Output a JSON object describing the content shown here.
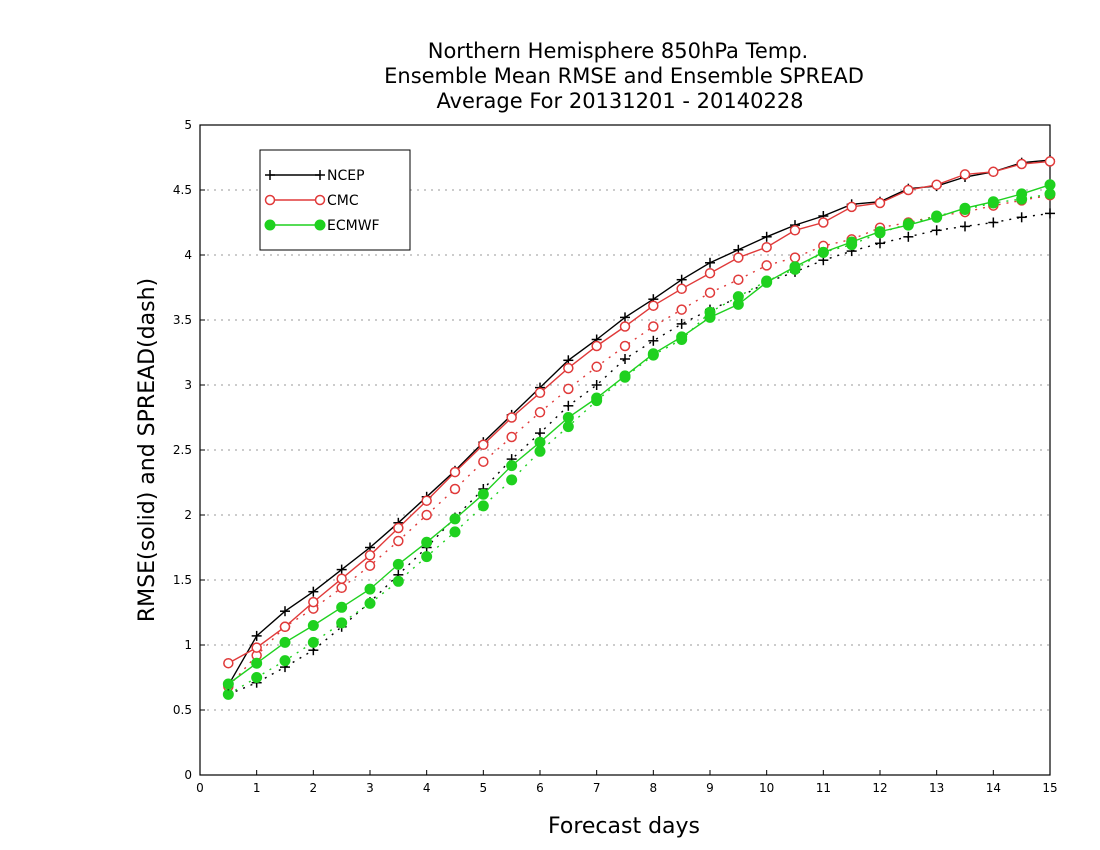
{
  "chart_data": {
    "type": "line",
    "title": [
      "Northern Hemisphere 850hPa Temp.",
      "Ensemble Mean RMSE and Ensemble SPREAD",
      "Average For 20131201 - 20140228"
    ],
    "xlabel": "Forecast days",
    "ylabel": "RMSE(solid) and SPREAD(dash)",
    "xlim": [
      0,
      15
    ],
    "ylim": [
      0,
      5
    ],
    "xticks": [
      "0",
      "1",
      "2",
      "3",
      "4",
      "5",
      "6",
      "7",
      "8",
      "9",
      "10",
      "11",
      "12",
      "13",
      "14",
      "15"
    ],
    "yticks": [
      "0",
      "0.5",
      "1",
      "1.5",
      "2",
      "2.5",
      "3",
      "3.5",
      "4",
      "4.5",
      "5"
    ],
    "grid": "horizontal dotted",
    "legend_position": "top-left",
    "x": [
      0.5,
      1,
      1.5,
      2,
      2.5,
      3,
      3.5,
      4,
      4.5,
      5,
      5.5,
      6,
      6.5,
      7,
      7.5,
      8,
      8.5,
      9,
      9.5,
      10,
      10.5,
      11,
      11.5,
      12,
      12.5,
      13,
      13.5,
      14,
      14.5,
      15
    ],
    "series": [
      {
        "name": "NCEP",
        "kind": "rmse",
        "style": "solid",
        "marker": "plus",
        "color": "#000000",
        "values": [
          0.69,
          1.07,
          1.26,
          1.41,
          1.58,
          1.75,
          1.94,
          2.14,
          2.34,
          2.56,
          2.77,
          2.98,
          3.19,
          3.35,
          3.52,
          3.66,
          3.81,
          3.94,
          4.04,
          4.14,
          4.23,
          4.3,
          4.39,
          4.41,
          4.51,
          4.53,
          4.6,
          4.64,
          4.71,
          4.73
        ]
      },
      {
        "name": "NCEP",
        "kind": "spread",
        "style": "dash",
        "marker": "plus",
        "color": "#000000",
        "values": [
          0.62,
          0.71,
          0.83,
          0.96,
          1.14,
          1.33,
          1.54,
          1.75,
          1.98,
          2.2,
          2.43,
          2.63,
          2.84,
          3.0,
          3.2,
          3.34,
          3.47,
          3.58,
          3.67,
          3.79,
          3.87,
          3.96,
          4.03,
          4.09,
          4.14,
          4.19,
          4.22,
          4.25,
          4.29,
          4.32
        ]
      },
      {
        "name": "CMC",
        "kind": "rmse",
        "style": "solid",
        "marker": "open-circle",
        "color": "#e03a3a",
        "values": [
          0.86,
          0.98,
          1.14,
          1.33,
          1.51,
          1.69,
          1.9,
          2.11,
          2.33,
          2.54,
          2.75,
          2.94,
          3.13,
          3.3,
          3.45,
          3.61,
          3.74,
          3.86,
          3.98,
          4.06,
          4.19,
          4.25,
          4.37,
          4.4,
          4.5,
          4.54,
          4.62,
          4.64,
          4.7,
          4.72
        ]
      },
      {
        "name": "CMC",
        "kind": "spread",
        "style": "dash",
        "marker": "open-circle",
        "color": "#e03a3a",
        "values": [
          0.68,
          0.92,
          1.14,
          1.28,
          1.44,
          1.61,
          1.8,
          2.0,
          2.2,
          2.41,
          2.6,
          2.79,
          2.97,
          3.14,
          3.3,
          3.45,
          3.58,
          3.71,
          3.81,
          3.92,
          3.98,
          4.07,
          4.12,
          4.21,
          4.25,
          4.3,
          4.33,
          4.38,
          4.42,
          4.46
        ]
      },
      {
        "name": "ECMWF",
        "kind": "rmse",
        "style": "solid",
        "marker": "filled-circle",
        "color": "#1fd11f",
        "values": [
          0.7,
          0.86,
          1.02,
          1.15,
          1.29,
          1.43,
          1.62,
          1.79,
          1.97,
          2.16,
          2.38,
          2.56,
          2.75,
          2.9,
          3.07,
          3.24,
          3.37,
          3.52,
          3.62,
          3.79,
          3.91,
          4.02,
          4.1,
          4.18,
          4.23,
          4.29,
          4.36,
          4.41,
          4.47,
          4.54
        ]
      },
      {
        "name": "ECMWF",
        "kind": "spread",
        "style": "dash",
        "marker": "filled-circle",
        "color": "#1fd11f",
        "values": [
          0.62,
          0.75,
          0.88,
          1.02,
          1.17,
          1.32,
          1.49,
          1.68,
          1.87,
          2.07,
          2.27,
          2.49,
          2.68,
          2.88,
          3.06,
          3.23,
          3.35,
          3.56,
          3.68,
          3.8,
          3.89,
          4.02,
          4.08,
          4.17,
          4.24,
          4.3,
          4.35,
          4.4,
          4.43,
          4.47
        ]
      }
    ]
  },
  "legend": [
    {
      "label": "NCEP",
      "marker": "plus",
      "color": "#000000"
    },
    {
      "label": "CMC",
      "marker": "open-circle",
      "color": "#e03a3a"
    },
    {
      "label": "ECMWF",
      "marker": "filled-circle",
      "color": "#1fd11f"
    }
  ]
}
